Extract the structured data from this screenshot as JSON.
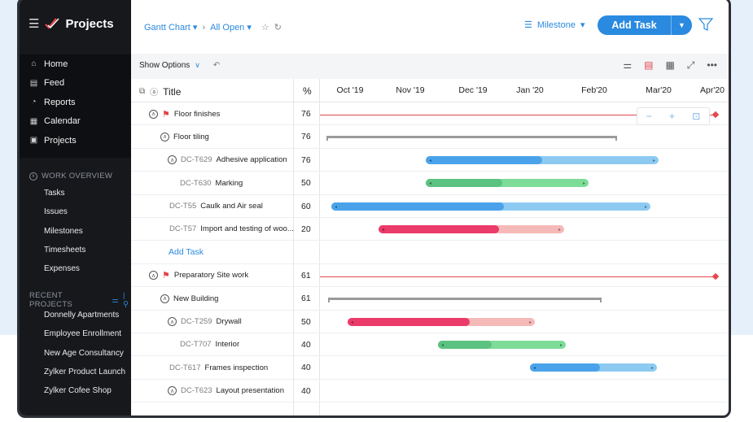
{
  "app": {
    "title": "Projects"
  },
  "nav": [
    {
      "label": "Home",
      "icon": "home-icon",
      "glyph": "⌂"
    },
    {
      "label": "Feed",
      "icon": "feed-icon",
      "glyph": "▤"
    },
    {
      "label": "Reports",
      "icon": "reports-icon",
      "glyph": "◔"
    },
    {
      "label": "Calendar",
      "icon": "calendar-icon",
      "glyph": "▦"
    },
    {
      "label": "Projects",
      "icon": "projects-icon",
      "glyph": "▣"
    }
  ],
  "work_overview": {
    "heading": "WORK OVERVIEW",
    "items": [
      "Tasks",
      "Issues",
      "Milestones",
      "Timesheets",
      "Expenses"
    ]
  },
  "recent_projects": {
    "heading": "RECENT PROJECTS",
    "items": [
      "Donnelly Apartments",
      "Employee Enrollment",
      "New Age Consultancy",
      "Zylker Product Launch",
      "Zylker Cofee Shop"
    ]
  },
  "header": {
    "view": "Gantt Chart",
    "filter": "All Open",
    "milestone": "Milestone",
    "add_task": "Add Task"
  },
  "toolbar": {
    "show_options": "Show Options"
  },
  "columns": {
    "title": "Title",
    "percent": "%"
  },
  "timeline": [
    "Oct '19",
    "Nov '19",
    "Dec '19",
    "Jan '20",
    "Feb'20",
    "Mar'20",
    "Apr'20"
  ],
  "rows": [
    {
      "id": "",
      "name": "Floor finishes",
      "percent": "76",
      "kind": "milestone"
    },
    {
      "id": "",
      "name": "Floor tiling",
      "percent": "76",
      "kind": "tasklist"
    },
    {
      "id": "DC-T629",
      "name": "Adhesive application",
      "percent": "76",
      "kind": "parent",
      "bar": {
        "color": "#4aa3ea",
        "light": "#8dcaf2",
        "progress": 0.5
      }
    },
    {
      "id": "DC-T630",
      "name": "Marking",
      "percent": "50",
      "kind": "sub",
      "bar": {
        "color": "#5cc281",
        "light": "#7ddc98",
        "progress": 0.47
      }
    },
    {
      "id": "DC-T55",
      "name": "Caulk and Air seal",
      "percent": "60",
      "kind": "task",
      "bar": {
        "color": "#4aa3ea",
        "light": "#8dcaf2",
        "progress": 0.54
      }
    },
    {
      "id": "DC-T57",
      "name": "Import and testing of woo...",
      "percent": "20",
      "kind": "task",
      "bar": {
        "color": "#ea3b6a",
        "light": "#f5b9b8",
        "progress": 0.65
      }
    },
    {
      "id": "",
      "name": "Add Task",
      "percent": "",
      "kind": "add"
    },
    {
      "id": "",
      "name": "Preparatory Site work",
      "percent": "61",
      "kind": "milestone"
    },
    {
      "id": "",
      "name": "New Building",
      "percent": "61",
      "kind": "tasklist"
    },
    {
      "id": "DC-T259",
      "name": "Drywall",
      "percent": "50",
      "kind": "parent",
      "bar": {
        "color": "#ea3b6a",
        "light": "#f5b9b8",
        "progress": 0.65
      }
    },
    {
      "id": "DC-T707",
      "name": "Interior",
      "percent": "40",
      "kind": "sub",
      "bar": {
        "color": "#5cc281",
        "light": "#7ddc98",
        "progress": 0.42
      }
    },
    {
      "id": "DC-T617",
      "name": "Frames inspection",
      "percent": "40",
      "kind": "task",
      "bar": {
        "color": "#4aa3ea",
        "light": "#8dcaf2",
        "progress": 0.55
      }
    },
    {
      "id": "DC-T623",
      "name": "Layout presentation",
      "percent": "40",
      "kind": "parent"
    }
  ]
}
